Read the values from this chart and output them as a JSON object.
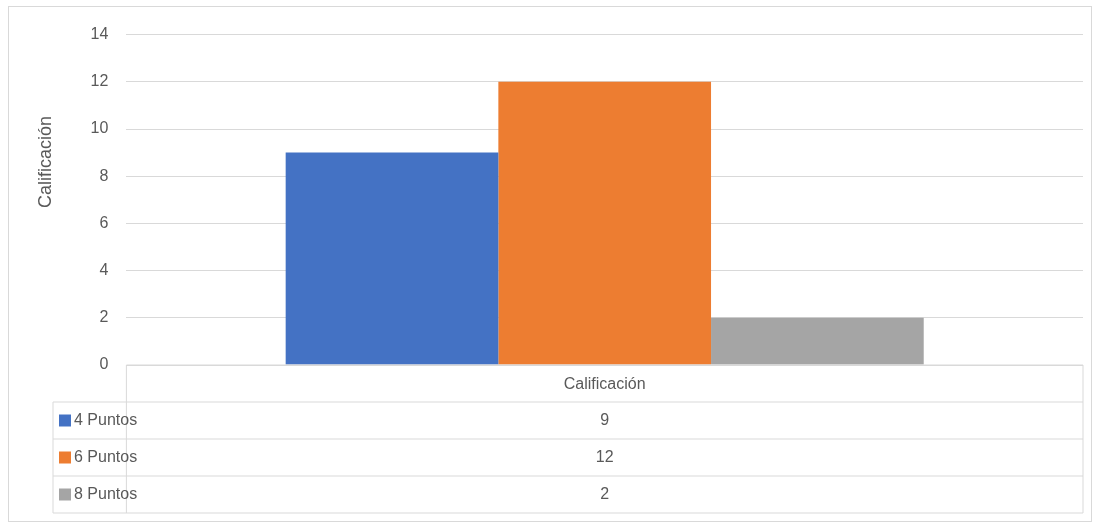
{
  "chart_data": {
    "type": "bar",
    "xlabel": "Calificación",
    "ylabel": "Calificación",
    "categories": [
      null
    ],
    "series": [
      {
        "name": "4 Puntos",
        "color": "#4472c4",
        "values": [
          9
        ]
      },
      {
        "name": "6 Puntos",
        "color": "#ed7d31",
        "values": [
          12
        ]
      },
      {
        "name": "8 Puntos",
        "color": "#a5a5a5",
        "values": [
          2
        ]
      }
    ],
    "ylim": [
      0,
      14
    ],
    "yticks": [
      0,
      2,
      4,
      6,
      8,
      10,
      12,
      14
    ],
    "grid": "y",
    "legend": "bottom",
    "annotations": [
      "9",
      "12",
      "2"
    ]
  }
}
